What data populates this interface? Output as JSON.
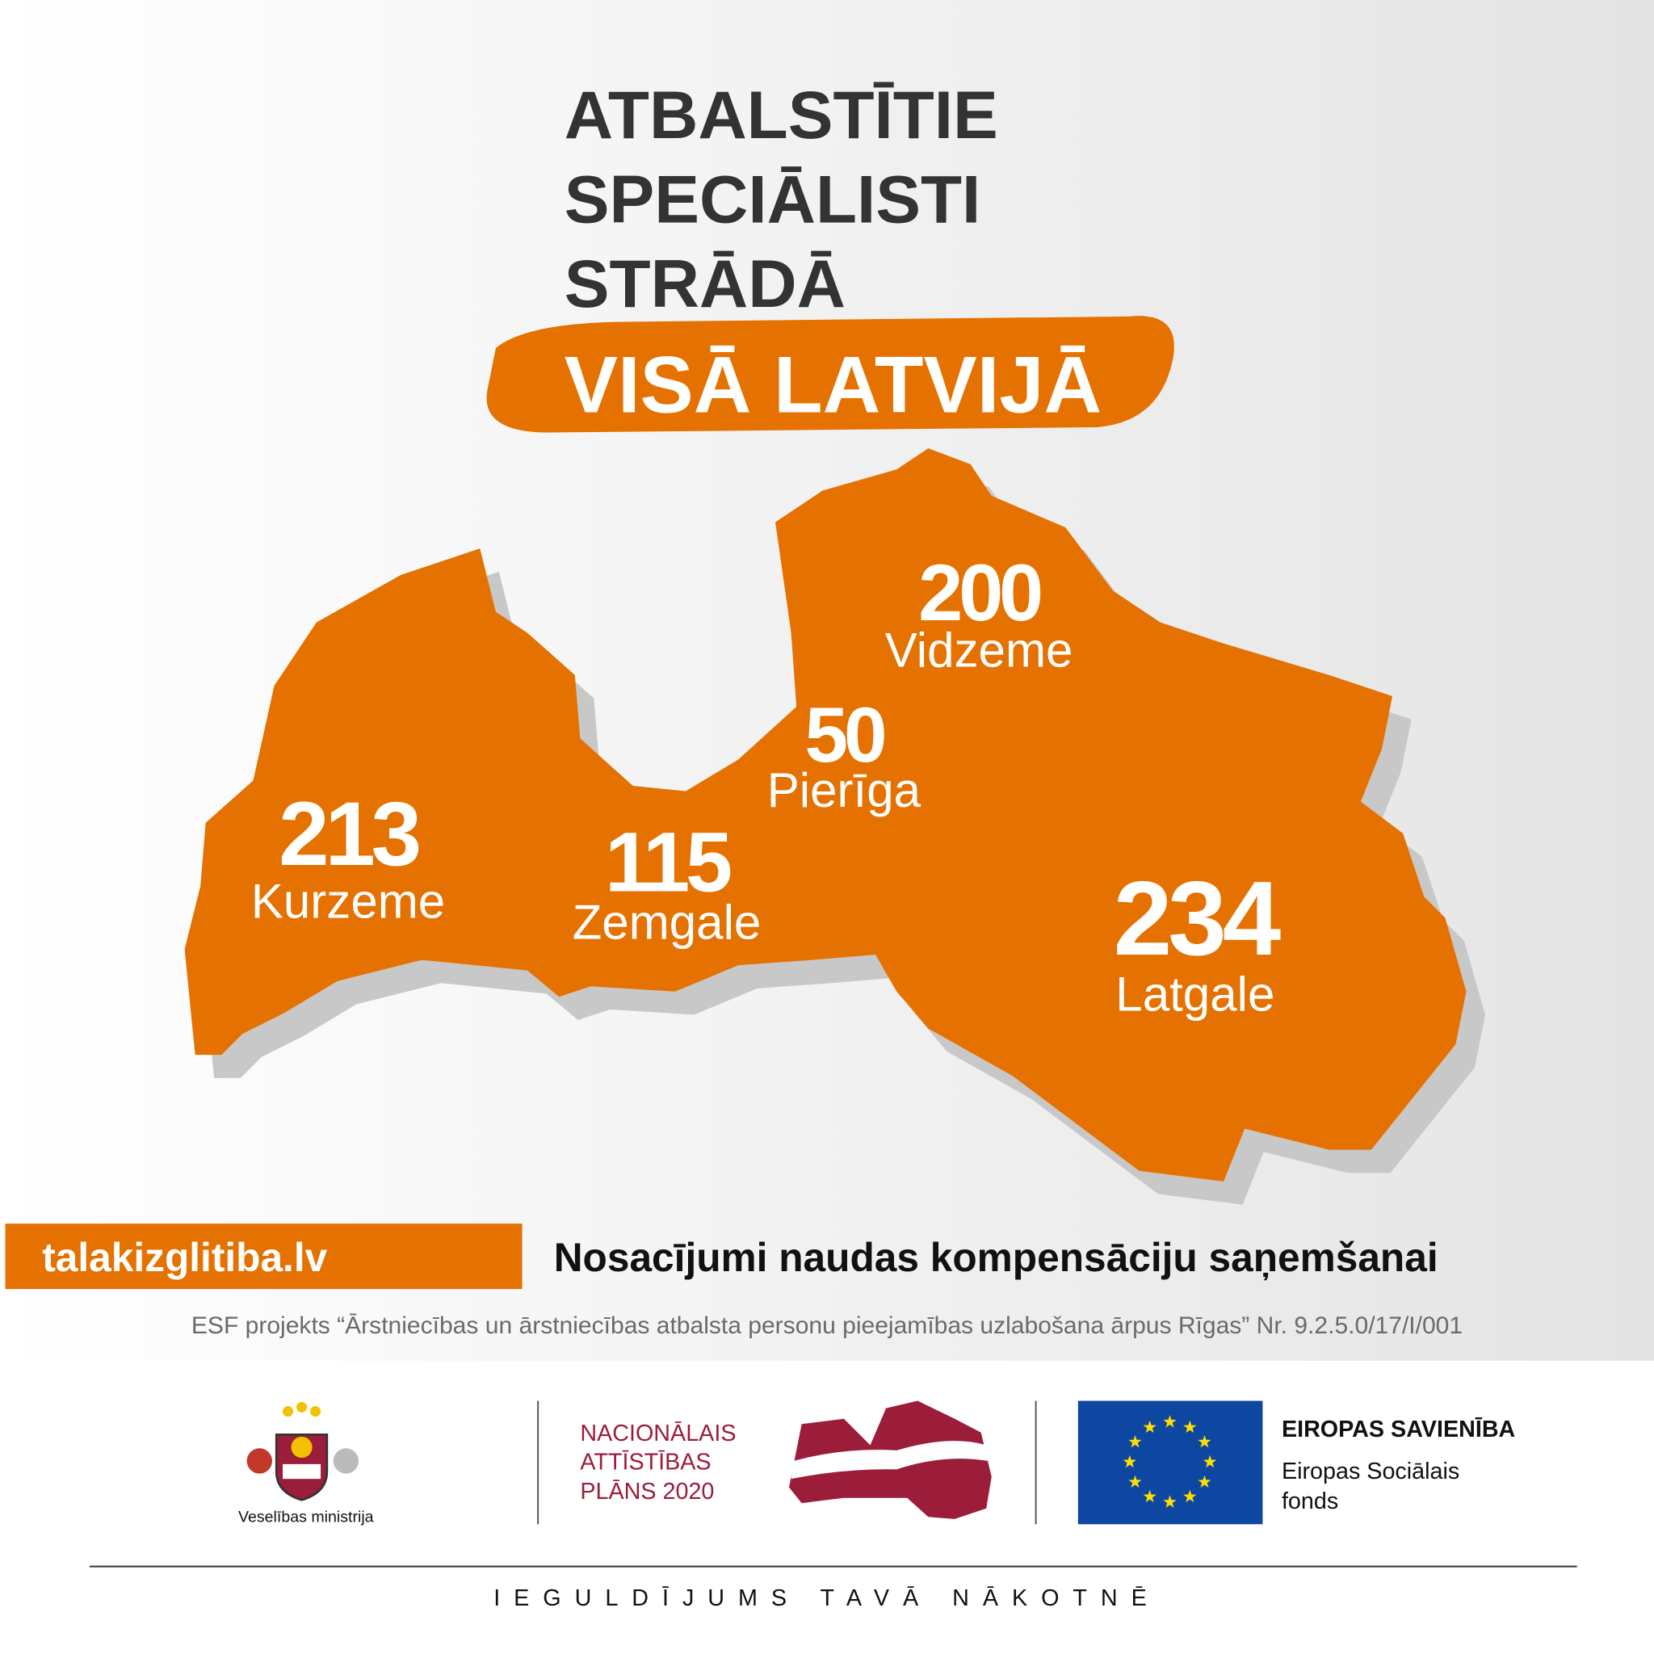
{
  "header": {
    "title_lines": [
      "ATBALSTĪTIE",
      "SPECIĀLISTI",
      "STRĀDĀ"
    ],
    "highlight": "VISĀ LATVIJĀ"
  },
  "regions": [
    {
      "value": "213",
      "name": "Kurzeme"
    },
    {
      "value": "115",
      "name": "Zemgale"
    },
    {
      "value": "50",
      "name": "Pierīga"
    },
    {
      "value": "200",
      "name": "Vidzeme"
    },
    {
      "value": "234",
      "name": "Latgale"
    }
  ],
  "link": "talakizglitiba.lv",
  "link_caption": "Nosacījumi naudas kompensāciju saņemšanai",
  "project_note": "ESF projekts “Ārstniecības un ārstniecības atbalsta personu pieejamības uzlabošana ārpus Rīgas” Nr. 9.2.5.0/17/I/001",
  "logos": {
    "ministry": "Veselības ministrija",
    "plan_lines": [
      "NACIONĀLAIS",
      "ATTĪSTĪBAS",
      "PLĀNS 2020"
    ],
    "eu_title": "EIROPAS SAVIENĪBA",
    "eu_fund_lines": [
      "Eiropas Sociālais",
      "fonds"
    ]
  },
  "footer": "IEGULDĪJUMS TAVĀ NĀKOTNĒ"
}
